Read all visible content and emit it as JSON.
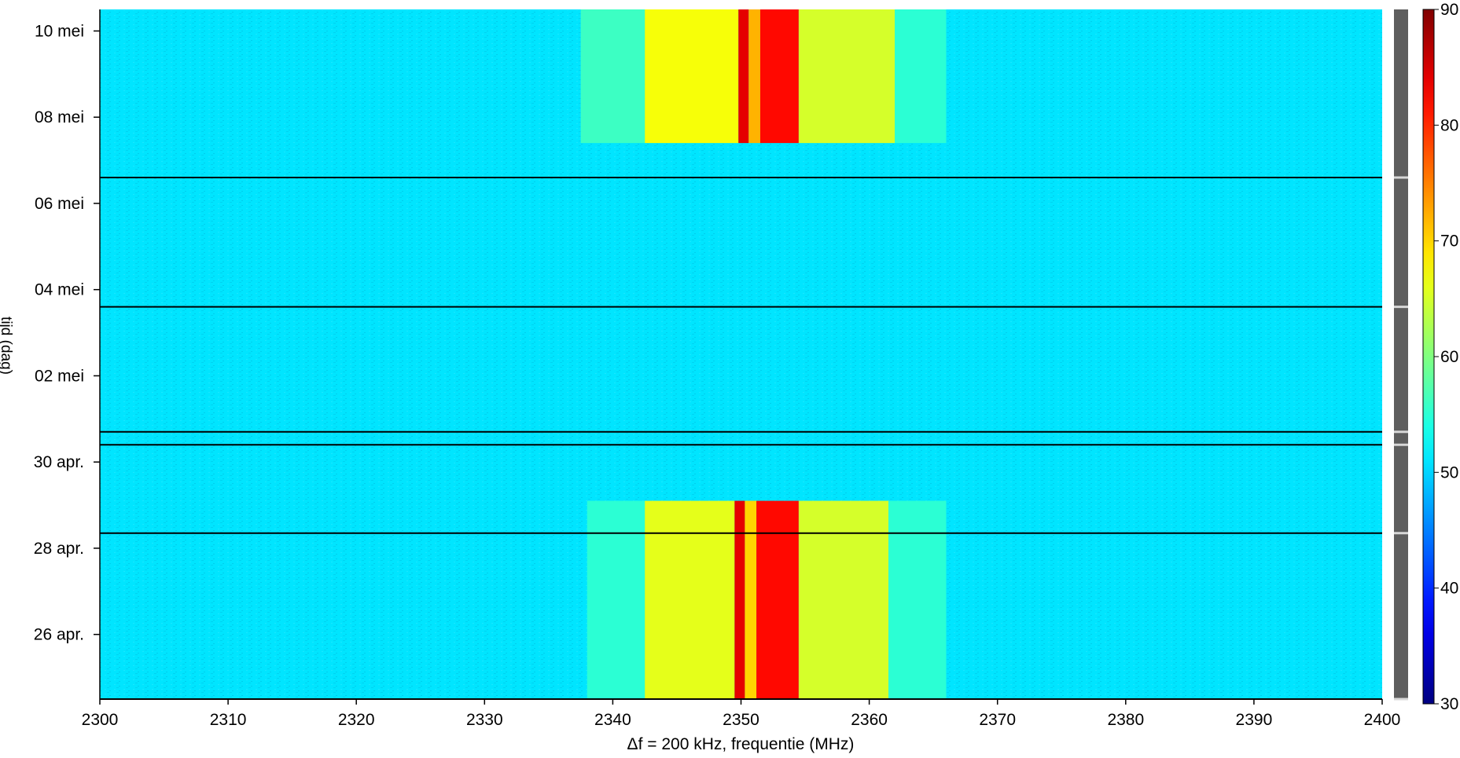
{
  "chart_data": {
    "type": "heatmap",
    "xlabel": "Δf = 200 kHz,   frequentie (MHz)",
    "ylabel": "tijd (dag)",
    "xlim": [
      2300,
      2400
    ],
    "x_ticks": [
      2300,
      2310,
      2320,
      2330,
      2340,
      2350,
      2360,
      2370,
      2380,
      2390,
      2400
    ],
    "ylim_days": [
      24.5,
      40.5
    ],
    "y_ticks": [
      {
        "day": 26,
        "label": "26 apr."
      },
      {
        "day": 28,
        "label": "28 apr."
      },
      {
        "day": 30,
        "label": "30 apr."
      },
      {
        "day": 32,
        "label": "02 mei"
      },
      {
        "day": 34,
        "label": "04 mei"
      },
      {
        "day": 36,
        "label": "06 mei"
      },
      {
        "day": 38,
        "label": "08 mei"
      },
      {
        "day": 40,
        "label": "10 mei"
      }
    ],
    "colorbar": {
      "min": 30,
      "max": 90,
      "ticks": [
        30,
        40,
        50,
        60,
        70,
        80,
        90
      ],
      "colormap": "jet"
    },
    "background_level": 51,
    "gap_lines_days": [
      24.5,
      28.35,
      30.4,
      30.7,
      33.6,
      36.6
    ],
    "signal_blocks": [
      {
        "period": "26-29 apr.",
        "day_start": 24.5,
        "day_end": 29.1,
        "bands": [
          {
            "f0": 2338,
            "f1": 2342.5,
            "level": 55
          },
          {
            "f0": 2342.5,
            "f1": 2349.5,
            "level": 66
          },
          {
            "f0": 2349.5,
            "f1": 2350.3,
            "level": 84
          },
          {
            "f0": 2350.3,
            "f1": 2351.2,
            "level": 70
          },
          {
            "f0": 2351.2,
            "f1": 2354.5,
            "level": 82
          },
          {
            "f0": 2354.5,
            "f1": 2361.5,
            "level": 65
          },
          {
            "f0": 2361.5,
            "f1": 2366,
            "level": 55
          }
        ]
      },
      {
        "period": "07-10 mei",
        "day_start": 37.4,
        "day_end": 40.5,
        "bands": [
          {
            "f0": 2337.5,
            "f1": 2342.5,
            "level": 56
          },
          {
            "f0": 2342.5,
            "f1": 2349.8,
            "level": 67
          },
          {
            "f0": 2349.8,
            "f1": 2350.6,
            "level": 84
          },
          {
            "f0": 2350.6,
            "f1": 2351.5,
            "level": 72
          },
          {
            "f0": 2351.5,
            "f1": 2354.5,
            "level": 82
          },
          {
            "f0": 2354.5,
            "f1": 2362,
            "level": 65
          },
          {
            "f0": 2362,
            "f1": 2366,
            "level": 55
          }
        ]
      }
    ],
    "grid": false,
    "legend": "colorbar-right"
  }
}
